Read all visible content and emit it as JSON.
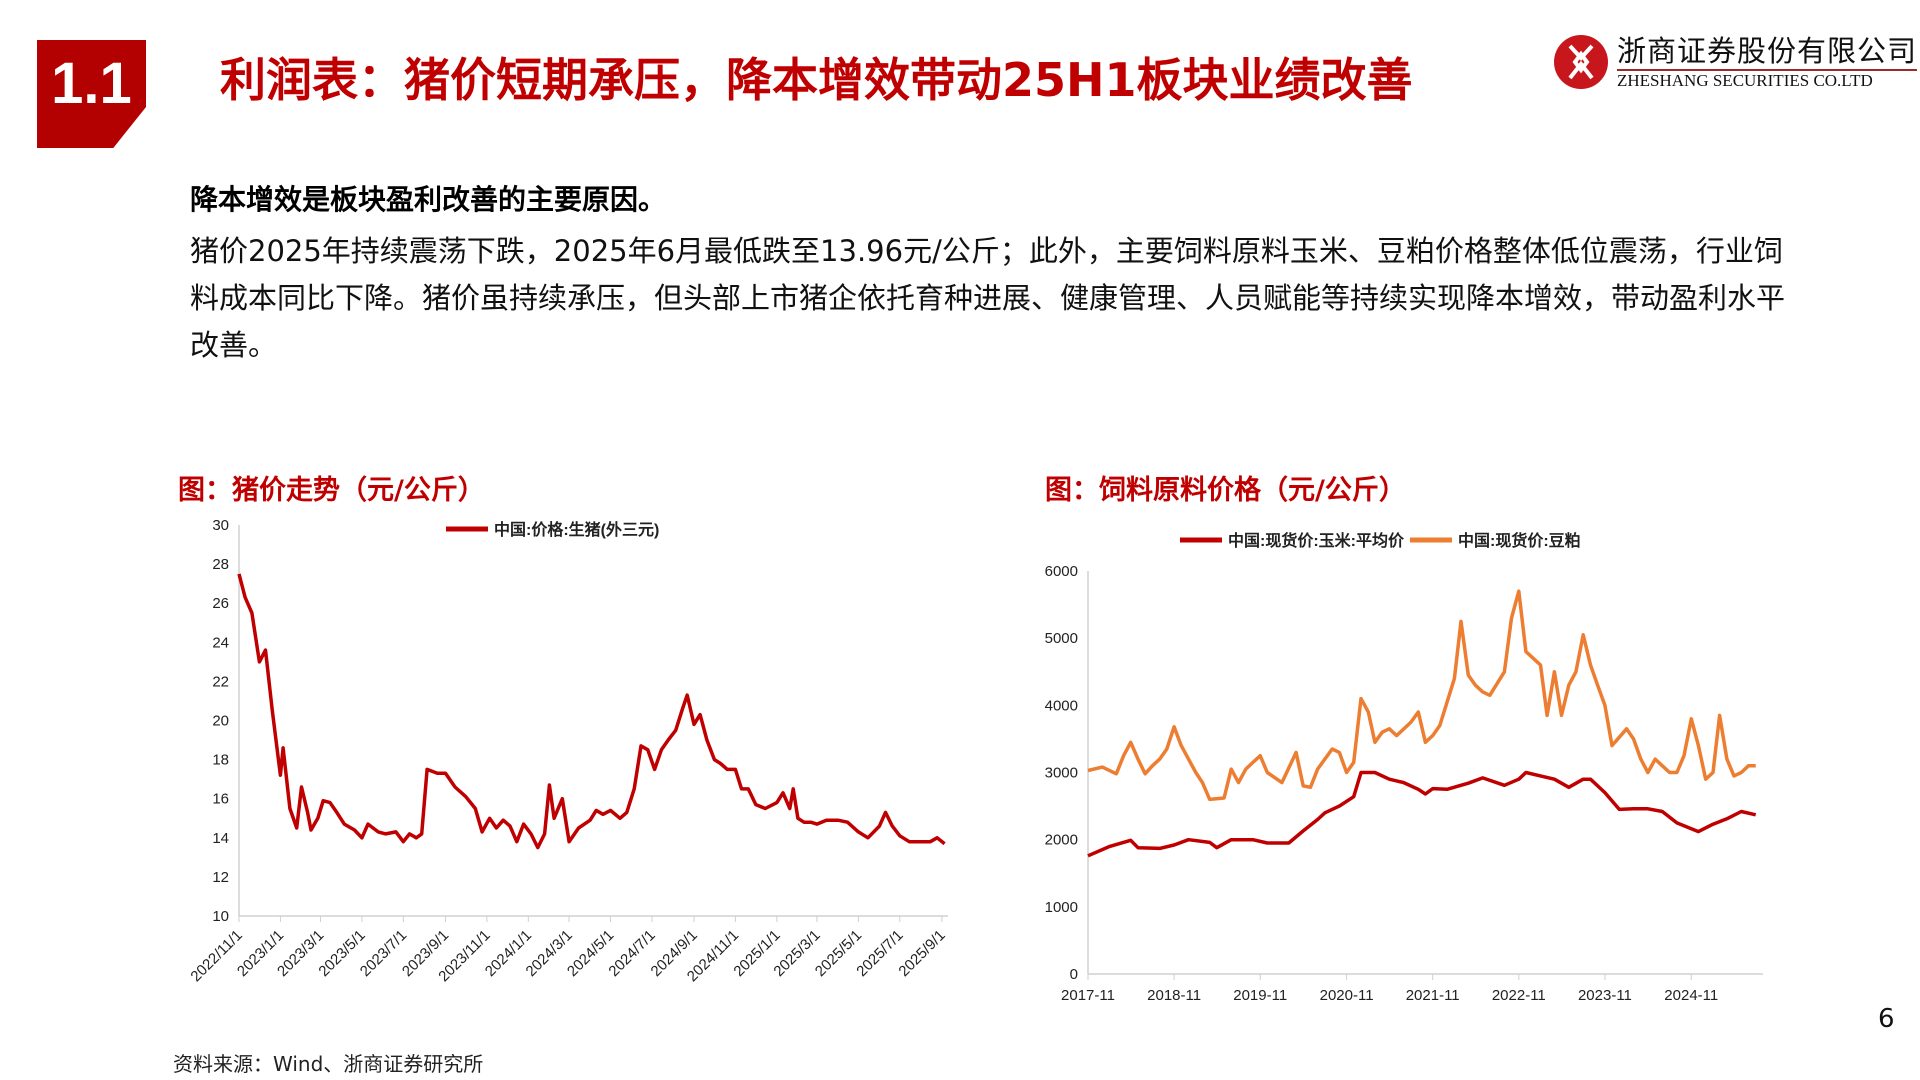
{
  "header": {
    "section_number": "1.1",
    "title": "利润表：猪价短期承压，降本增效带动25H1板块业绩改善"
  },
  "logo": {
    "name_cn": "浙商证券股份有限公司",
    "name_en": "ZHESHANG SECURITIES CO.LTD",
    "color": "#C8161D"
  },
  "body": {
    "lead": "降本增效是板块盈利改善的主要原因。",
    "paragraph": "猪价2025年持续震荡下跌，2025年6月最低跌至13.96元/公斤；此外，主要饲料原料玉米、豆粕价格整体低位震荡，行业饲料成本同比下降。猪价虽持续承压，但头部上市猪企依托育种进展、健康管理、人员赋能等持续实现降本增效，带动盈利水平改善。"
  },
  "footer": {
    "source": "资料来源：Wind、浙商证券研究所",
    "page_number": "6"
  },
  "chart_data": [
    {
      "type": "line",
      "title": "图：猪价走势（元/公斤）",
      "ylim": [
        10,
        30
      ],
      "yticks": [
        10,
        12,
        14,
        16,
        18,
        20,
        22,
        24,
        26,
        28,
        30
      ],
      "xlim": [
        "2022-11-01",
        "2025-09-10"
      ],
      "xticks": [
        "2022/11/1",
        "2023/1/1",
        "2023/3/1",
        "2023/5/1",
        "2023/7/1",
        "2023/9/1",
        "2023/11/1",
        "2024/1/1",
        "2024/3/1",
        "2024/5/1",
        "2024/7/1",
        "2024/9/1",
        "2024/11/1",
        "2025/1/1",
        "2025/3/1",
        "2025/5/1",
        "2025/7/1",
        "2025/9/1"
      ],
      "legend_position": "top-center",
      "grid": false,
      "series": [
        {
          "name": "中国:价格:生猪(外三元)",
          "color": "#C00000",
          "points": [
            [
              "2022-11-01",
              27.5
            ],
            [
              "2022-11-10",
              26.3
            ],
            [
              "2022-11-20",
              25.5
            ],
            [
              "2022-12-01",
              23.0
            ],
            [
              "2022-12-10",
              23.6
            ],
            [
              "2022-12-20",
              20.5
            ],
            [
              "2023-01-01",
              17.2
            ],
            [
              "2023-01-05",
              18.6
            ],
            [
              "2023-01-15",
              15.5
            ],
            [
              "2023-01-25",
              14.5
            ],
            [
              "2023-02-01",
              16.6
            ],
            [
              "2023-02-10",
              15.3
            ],
            [
              "2023-02-15",
              14.4
            ],
            [
              "2023-02-25",
              15.0
            ],
            [
              "2023-03-05",
              15.9
            ],
            [
              "2023-03-15",
              15.8
            ],
            [
              "2023-03-25",
              15.3
            ],
            [
              "2023-04-05",
              14.7
            ],
            [
              "2023-04-20",
              14.4
            ],
            [
              "2023-05-01",
              14.0
            ],
            [
              "2023-05-10",
              14.7
            ],
            [
              "2023-05-25",
              14.3
            ],
            [
              "2023-06-05",
              14.2
            ],
            [
              "2023-06-20",
              14.3
            ],
            [
              "2023-07-01",
              13.8
            ],
            [
              "2023-07-10",
              14.2
            ],
            [
              "2023-07-20",
              14.0
            ],
            [
              "2023-07-28",
              14.2
            ],
            [
              "2023-08-05",
              17.5
            ],
            [
              "2023-08-20",
              17.3
            ],
            [
              "2023-09-01",
              17.3
            ],
            [
              "2023-09-15",
              16.6
            ],
            [
              "2023-10-01",
              16.1
            ],
            [
              "2023-10-15",
              15.5
            ],
            [
              "2023-10-25",
              14.3
            ],
            [
              "2023-11-05",
              15.0
            ],
            [
              "2023-11-15",
              14.5
            ],
            [
              "2023-11-25",
              14.9
            ],
            [
              "2023-12-05",
              14.6
            ],
            [
              "2023-12-15",
              13.8
            ],
            [
              "2023-12-25",
              14.7
            ],
            [
              "2024-01-05",
              14.2
            ],
            [
              "2024-01-15",
              13.5
            ],
            [
              "2024-01-25",
              14.2
            ],
            [
              "2024-02-01",
              16.7
            ],
            [
              "2024-02-08",
              15.0
            ],
            [
              "2024-02-20",
              16.0
            ],
            [
              "2024-03-01",
              13.8
            ],
            [
              "2024-03-15",
              14.5
            ],
            [
              "2024-04-01",
              14.9
            ],
            [
              "2024-04-10",
              15.4
            ],
            [
              "2024-04-20",
              15.2
            ],
            [
              "2024-05-01",
              15.4
            ],
            [
              "2024-05-15",
              15.0
            ],
            [
              "2024-05-25",
              15.3
            ],
            [
              "2024-06-05",
              16.5
            ],
            [
              "2024-06-15",
              18.7
            ],
            [
              "2024-06-25",
              18.5
            ],
            [
              "2024-07-05",
              17.5
            ],
            [
              "2024-07-15",
              18.5
            ],
            [
              "2024-07-25",
              19.0
            ],
            [
              "2024-08-05",
              19.5
            ],
            [
              "2024-08-15",
              20.6
            ],
            [
              "2024-08-22",
              21.3
            ],
            [
              "2024-09-01",
              19.8
            ],
            [
              "2024-09-10",
              20.3
            ],
            [
              "2024-09-20",
              19.0
            ],
            [
              "2024-10-01",
              18.0
            ],
            [
              "2024-10-10",
              17.8
            ],
            [
              "2024-10-20",
              17.5
            ],
            [
              "2024-11-01",
              17.5
            ],
            [
              "2024-11-10",
              16.5
            ],
            [
              "2024-11-20",
              16.5
            ],
            [
              "2024-12-01",
              15.7
            ],
            [
              "2024-12-15",
              15.5
            ],
            [
              "2025-01-01",
              15.8
            ],
            [
              "2025-01-10",
              16.3
            ],
            [
              "2025-01-20",
              15.5
            ],
            [
              "2025-01-25",
              16.5
            ],
            [
              "2025-02-01",
              15.0
            ],
            [
              "2025-02-10",
              14.8
            ],
            [
              "2025-02-20",
              14.8
            ],
            [
              "2025-03-01",
              14.7
            ],
            [
              "2025-03-15",
              14.9
            ],
            [
              "2025-04-01",
              14.9
            ],
            [
              "2025-04-15",
              14.8
            ],
            [
              "2025-05-01",
              14.3
            ],
            [
              "2025-05-15",
              14.0
            ],
            [
              "2025-06-01",
              14.6
            ],
            [
              "2025-06-10",
              15.3
            ],
            [
              "2025-06-20",
              14.6
            ],
            [
              "2025-07-01",
              14.1
            ],
            [
              "2025-07-15",
              13.8
            ],
            [
              "2025-08-01",
              13.8
            ],
            [
              "2025-08-15",
              13.8
            ],
            [
              "2025-08-25",
              14.0
            ],
            [
              "2025-09-05",
              13.7
            ]
          ]
        }
      ]
    },
    {
      "type": "line",
      "title": "图：饲料原料价格（元/公斤）",
      "ylim": [
        0,
        6000
      ],
      "yticks": [
        0,
        1000,
        2000,
        3000,
        4000,
        5000,
        6000
      ],
      "xlim": [
        "2017-11",
        "2025-09"
      ],
      "xticks": [
        "2017-11",
        "2018-11",
        "2019-11",
        "2020-11",
        "2021-11",
        "2022-11",
        "2023-11",
        "2024-11"
      ],
      "legend_position": "top-center",
      "grid": false,
      "series": [
        {
          "name": "中国:现货价:玉米:平均价",
          "color": "#C00000",
          "points": [
            [
              "2017-11",
              1760
            ],
            [
              "2018-02",
              1900
            ],
            [
              "2018-05",
              1990
            ],
            [
              "2018-06",
              1880
            ],
            [
              "2018-09",
              1870
            ],
            [
              "2018-11",
              1920
            ],
            [
              "2019-01",
              2000
            ],
            [
              "2019-04",
              1960
            ],
            [
              "2019-05",
              1880
            ],
            [
              "2019-07",
              2000
            ],
            [
              "2019-10",
              2000
            ],
            [
              "2019-12",
              1950
            ],
            [
              "2020-03",
              1950
            ],
            [
              "2020-05",
              2130
            ],
            [
              "2020-07",
              2300
            ],
            [
              "2020-08",
              2400
            ],
            [
              "2020-10",
              2500
            ],
            [
              "2020-12",
              2640
            ],
            [
              "2021-01",
              3000
            ],
            [
              "2021-03",
              3000
            ],
            [
              "2021-05",
              2900
            ],
            [
              "2021-07",
              2850
            ],
            [
              "2021-09",
              2750
            ],
            [
              "2021-10",
              2680
            ],
            [
              "2021-11",
              2760
            ],
            [
              "2022-01",
              2750
            ],
            [
              "2022-04",
              2840
            ],
            [
              "2022-06",
              2920
            ],
            [
              "2022-09",
              2810
            ],
            [
              "2022-11",
              2900
            ],
            [
              "2022-12",
              3000
            ],
            [
              "2023-02",
              2950
            ],
            [
              "2023-04",
              2900
            ],
            [
              "2023-06",
              2780
            ],
            [
              "2023-08",
              2900
            ],
            [
              "2023-09",
              2900
            ],
            [
              "2023-11",
              2700
            ],
            [
              "2024-01",
              2450
            ],
            [
              "2024-03",
              2460
            ],
            [
              "2024-05",
              2460
            ],
            [
              "2024-07",
              2420
            ],
            [
              "2024-09",
              2250
            ],
            [
              "2024-12",
              2120
            ],
            [
              "2025-02",
              2230
            ],
            [
              "2025-04",
              2310
            ],
            [
              "2025-06",
              2420
            ],
            [
              "2025-08",
              2370
            ]
          ]
        },
        {
          "name": "中国:现货价:豆粕",
          "color": "#ED7D31",
          "points": [
            [
              "2017-11",
              3030
            ],
            [
              "2018-01",
              3080
            ],
            [
              "2018-03",
              2980
            ],
            [
              "2018-04",
              3250
            ],
            [
              "2018-05",
              3450
            ],
            [
              "2018-06",
              3200
            ],
            [
              "2018-07",
              2980
            ],
            [
              "2018-08",
              3100
            ],
            [
              "2018-09",
              3200
            ],
            [
              "2018-10",
              3350
            ],
            [
              "2018-11",
              3680
            ],
            [
              "2018-12",
              3400
            ],
            [
              "2019-02",
              3000
            ],
            [
              "2019-03",
              2850
            ],
            [
              "2019-04",
              2600
            ],
            [
              "2019-06",
              2620
            ],
            [
              "2019-07",
              3050
            ],
            [
              "2019-08",
              2850
            ],
            [
              "2019-09",
              3050
            ],
            [
              "2019-10",
              3150
            ],
            [
              "2019-11",
              3250
            ],
            [
              "2019-12",
              3000
            ],
            [
              "2020-02",
              2850
            ],
            [
              "2020-04",
              3300
            ],
            [
              "2020-05",
              2800
            ],
            [
              "2020-06",
              2780
            ],
            [
              "2020-07",
              3050
            ],
            [
              "2020-09",
              3350
            ],
            [
              "2020-10",
              3300
            ],
            [
              "2020-11",
              3000
            ],
            [
              "2020-12",
              3150
            ],
            [
              "2021-01",
              4100
            ],
            [
              "2021-02",
              3900
            ],
            [
              "2021-03",
              3450
            ],
            [
              "2021-04",
              3600
            ],
            [
              "2021-05",
              3650
            ],
            [
              "2021-06",
              3550
            ],
            [
              "2021-08",
              3750
            ],
            [
              "2021-09",
              3900
            ],
            [
              "2021-10",
              3450
            ],
            [
              "2021-11",
              3550
            ],
            [
              "2021-12",
              3700
            ],
            [
              "2022-02",
              4400
            ],
            [
              "2022-03",
              5250
            ],
            [
              "2022-04",
              4450
            ],
            [
              "2022-05",
              4300
            ],
            [
              "2022-06",
              4200
            ],
            [
              "2022-07",
              4150
            ],
            [
              "2022-09",
              4500
            ],
            [
              "2022-10",
              5300
            ],
            [
              "2022-11",
              5700
            ],
            [
              "2022-12",
              4800
            ],
            [
              "2023-01",
              4700
            ],
            [
              "2023-02",
              4600
            ],
            [
              "2023-03",
              3850
            ],
            [
              "2023-04",
              4500
            ],
            [
              "2023-05",
              3850
            ],
            [
              "2023-06",
              4300
            ],
            [
              "2023-07",
              4500
            ],
            [
              "2023-08",
              5050
            ],
            [
              "2023-09",
              4600
            ],
            [
              "2023-10",
              4300
            ],
            [
              "2023-11",
              4000
            ],
            [
              "2023-12",
              3400
            ],
            [
              "2024-02",
              3650
            ],
            [
              "2024-03",
              3500
            ],
            [
              "2024-04",
              3200
            ],
            [
              "2024-05",
              3000
            ],
            [
              "2024-06",
              3200
            ],
            [
              "2024-07",
              3100
            ],
            [
              "2024-08",
              3000
            ],
            [
              "2024-09",
              3000
            ],
            [
              "2024-10",
              3250
            ],
            [
              "2024-11",
              3800
            ],
            [
              "2024-12",
              3400
            ],
            [
              "2025-01",
              2900
            ],
            [
              "2025-02",
              3000
            ],
            [
              "2025-03",
              3850
            ],
            [
              "2025-04",
              3200
            ],
            [
              "2025-05",
              2950
            ],
            [
              "2025-06",
              3000
            ],
            [
              "2025-07",
              3100
            ],
            [
              "2025-08",
              3100
            ]
          ]
        }
      ]
    }
  ]
}
